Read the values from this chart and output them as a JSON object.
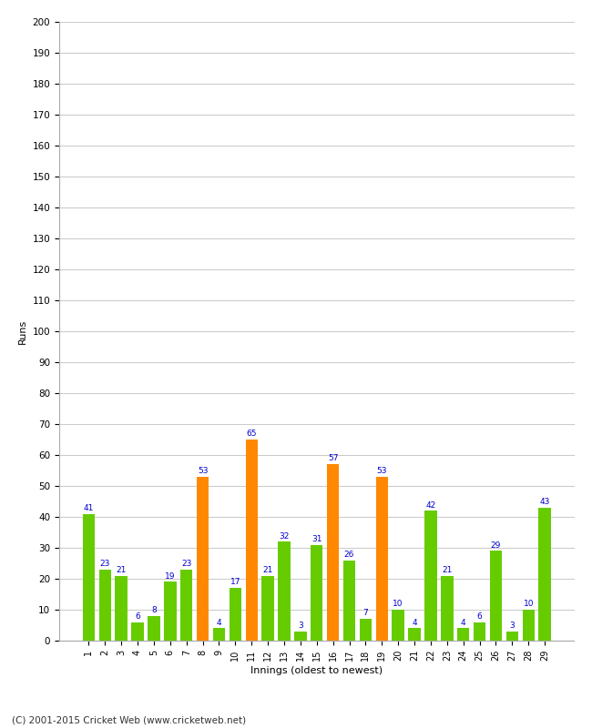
{
  "innings": [
    1,
    2,
    3,
    4,
    5,
    6,
    7,
    8,
    9,
    10,
    11,
    12,
    13,
    14,
    15,
    16,
    17,
    18,
    19,
    20,
    21,
    22,
    23,
    24,
    25,
    26,
    27,
    28,
    29
  ],
  "values": [
    41,
    23,
    21,
    6,
    8,
    19,
    23,
    53,
    4,
    17,
    65,
    21,
    32,
    3,
    31,
    57,
    26,
    7,
    53,
    10,
    4,
    42,
    21,
    4,
    6,
    29,
    3,
    10,
    43
  ],
  "colors": [
    "#66cc00",
    "#66cc00",
    "#66cc00",
    "#66cc00",
    "#66cc00",
    "#66cc00",
    "#66cc00",
    "#ff8800",
    "#66cc00",
    "#66cc00",
    "#ff8800",
    "#66cc00",
    "#66cc00",
    "#66cc00",
    "#66cc00",
    "#ff8800",
    "#66cc00",
    "#66cc00",
    "#ff8800",
    "#66cc00",
    "#66cc00",
    "#66cc00",
    "#66cc00",
    "#66cc00",
    "#66cc00",
    "#66cc00",
    "#66cc00",
    "#66cc00",
    "#66cc00"
  ],
  "ylabel": "Runs",
  "xlabel": "Innings (oldest to newest)",
  "ylim": [
    0,
    200
  ],
  "yticks": [
    0,
    10,
    20,
    30,
    40,
    50,
    60,
    70,
    80,
    90,
    100,
    110,
    120,
    130,
    140,
    150,
    160,
    170,
    180,
    190,
    200
  ],
  "footer": "(C) 2001-2015 Cricket Web (www.cricketweb.net)",
  "label_color": "#0000cc",
  "background_color": "#ffffff",
  "grid_color": "#cccccc"
}
